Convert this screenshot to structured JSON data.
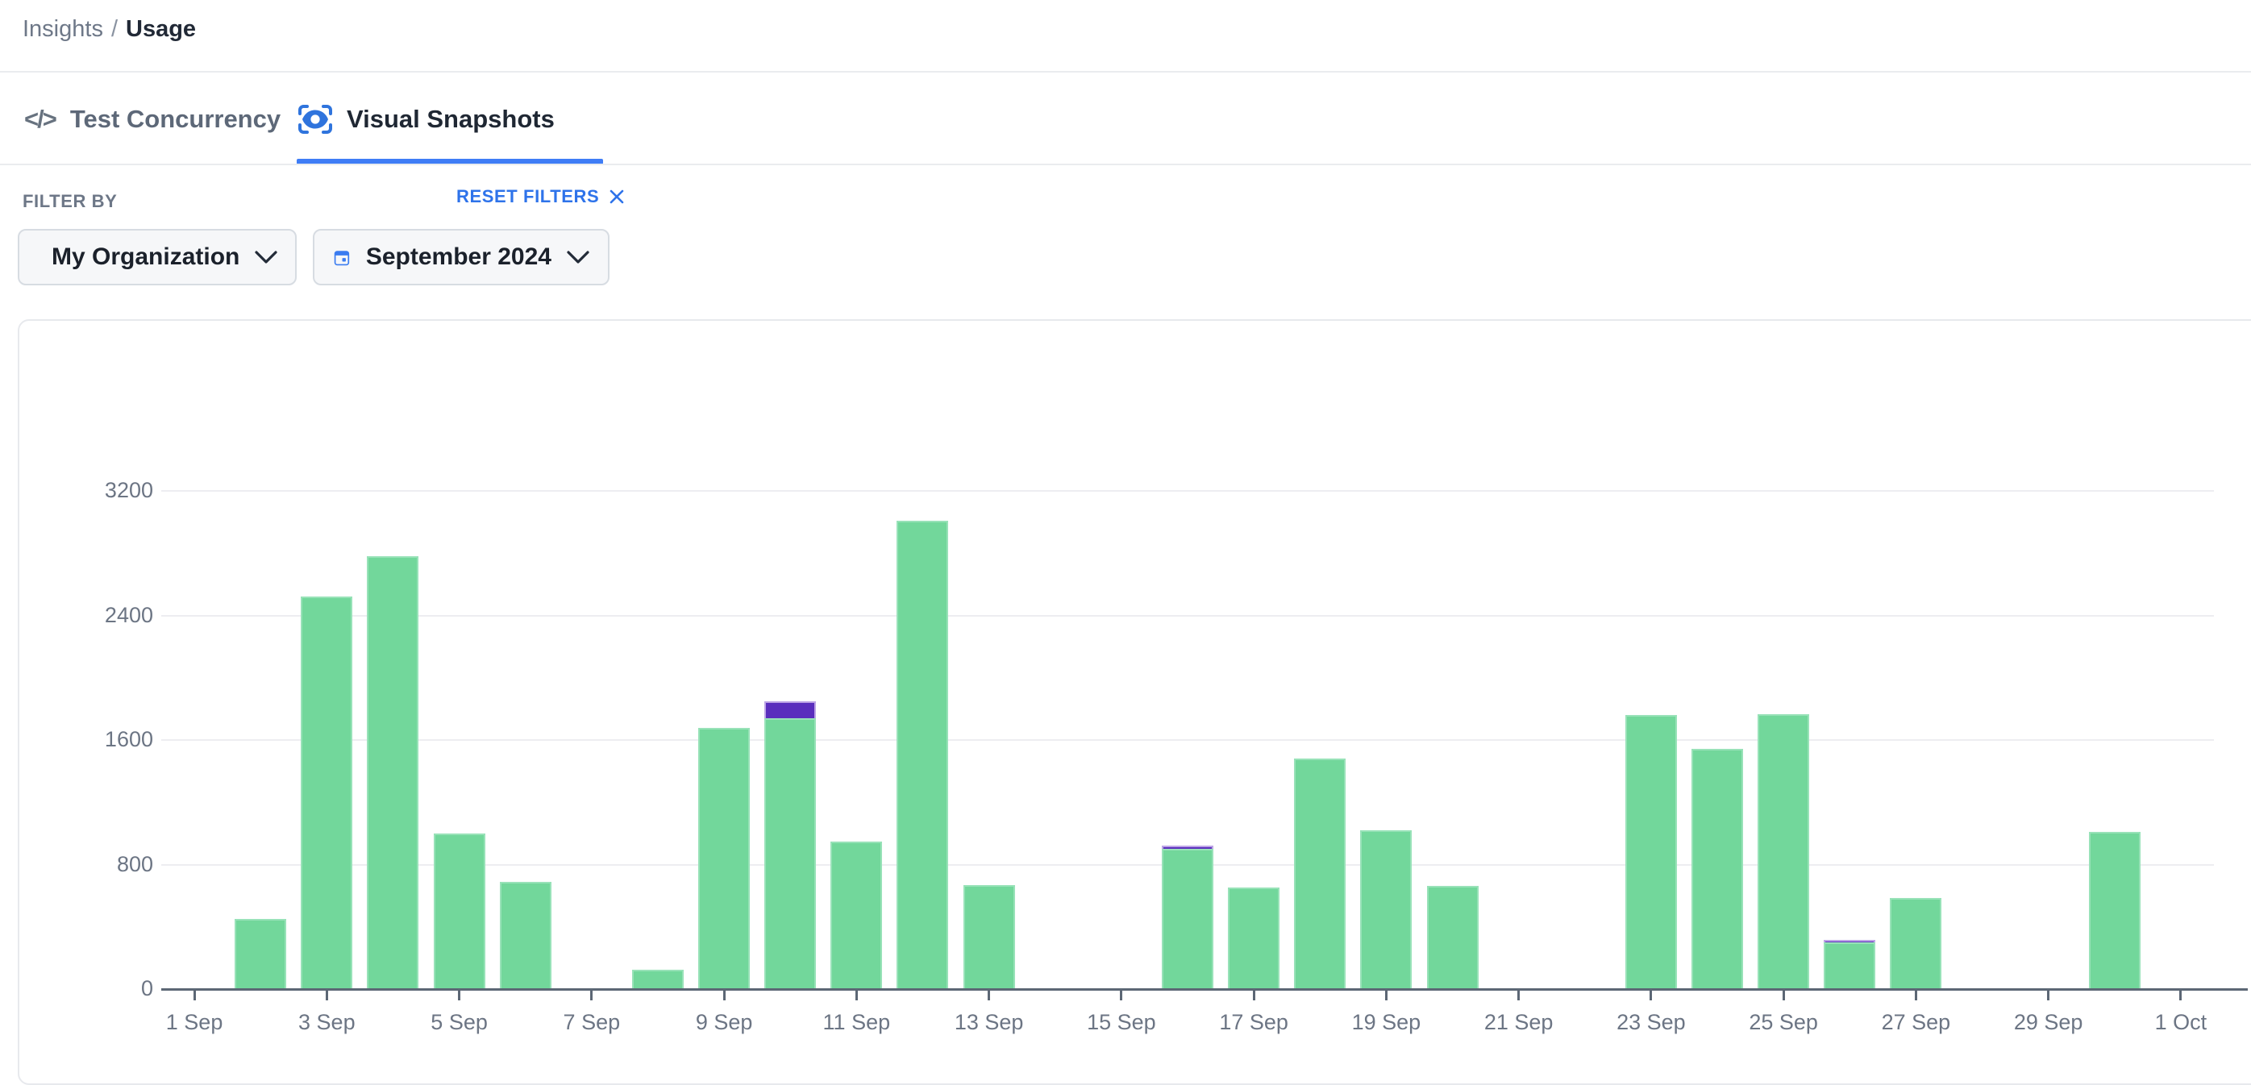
{
  "breadcrumb": {
    "section": "Insights",
    "separator": "/",
    "current": "Usage"
  },
  "tabs": [
    {
      "label": "Test Concurrency",
      "icon": "code-icon",
      "active": false
    },
    {
      "label": "Visual Snapshots",
      "icon": "snapshot-eye-icon",
      "active": true
    }
  ],
  "filter": {
    "label": "FILTER BY",
    "reset_label": "RESET FILTERS",
    "reset_icon": "x-icon"
  },
  "dropdowns": [
    {
      "icon": "user-icon",
      "value": "My Organization"
    },
    {
      "icon": "calendar-icon",
      "value": "September 2024"
    }
  ],
  "colors": {
    "accent_blue": "#3379f0",
    "tab_underline": "#3f7df6",
    "bar_green": "#72d79b",
    "bar_green_border": "#98e2b8",
    "bar_purple": "#5a2ebd",
    "bar_purple_border": "#bda4e6",
    "axis": "#5c6775",
    "grid": "#ededf1",
    "label_gray": "#6c7584"
  },
  "chart_data": {
    "type": "bar",
    "stacked": true,
    "title": "",
    "xlabel": "",
    "ylabel": "",
    "grid": true,
    "legend": "none",
    "y_ticks": [
      0,
      800,
      1600,
      2400,
      3200
    ],
    "ylim": [
      0,
      3400
    ],
    "categories": [
      "1 Sep",
      "2 Sep",
      "3 Sep",
      "4 Sep",
      "5 Sep",
      "6 Sep",
      "7 Sep",
      "8 Sep",
      "9 Sep",
      "10 Sep",
      "11 Sep",
      "12 Sep",
      "13 Sep",
      "14 Sep",
      "15 Sep",
      "16 Sep",
      "17 Sep",
      "18 Sep",
      "19 Sep",
      "20 Sep",
      "21 Sep",
      "22 Sep",
      "23 Sep",
      "24 Sep",
      "25 Sep",
      "26 Sep",
      "27 Sep",
      "28 Sep",
      "29 Sep",
      "30 Sep",
      "1 Oct"
    ],
    "x_tick_labels": [
      "1 Sep",
      "3 Sep",
      "5 Sep",
      "7 Sep",
      "9 Sep",
      "11 Sep",
      "13 Sep",
      "15 Sep",
      "17 Sep",
      "19 Sep",
      "21 Sep",
      "23 Sep",
      "25 Sep",
      "27 Sep",
      "29 Sep",
      "1 Oct"
    ],
    "series": [
      {
        "name": "green",
        "values": [
          0,
          450,
          2520,
          2780,
          1000,
          690,
          0,
          125,
          1680,
          1740,
          950,
          3010,
          670,
          0,
          0,
          900,
          650,
          1480,
          1020,
          665,
          0,
          0,
          1760,
          1545,
          1765,
          300,
          585,
          0,
          0,
          1010,
          0
        ]
      },
      {
        "name": "purple",
        "values": [
          0,
          0,
          0,
          0,
          0,
          0,
          0,
          0,
          0,
          110,
          0,
          0,
          0,
          0,
          0,
          20,
          0,
          0,
          0,
          0,
          0,
          0,
          0,
          0,
          0,
          15,
          0,
          0,
          0,
          0,
          0
        ]
      }
    ]
  }
}
